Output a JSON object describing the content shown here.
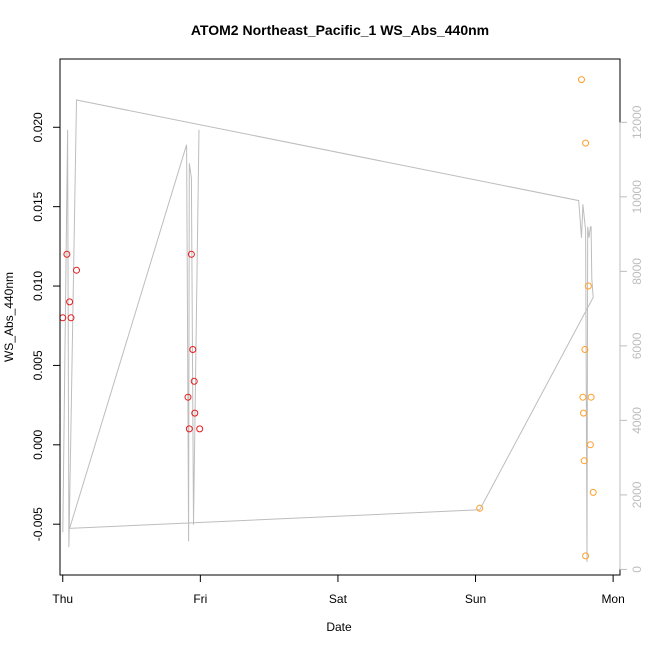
{
  "chart_data": {
    "type": "scatter",
    "title": "ATOM2 Northeast_Pacific_1 WS_Abs_440nm",
    "xlabel": "Date",
    "ylabel": "WS_Abs_440nm",
    "xlim_days": [
      -0.02,
      4.05
    ],
    "ylim": [
      -0.0082,
      0.0243
    ],
    "y2lim": [
      -150,
      13700
    ],
    "x_ticks": [
      {
        "label": "Thu",
        "day": 0
      },
      {
        "label": "Fri",
        "day": 1
      },
      {
        "label": "Sat",
        "day": 2
      },
      {
        "label": "Sun",
        "day": 3
      },
      {
        "label": "Mon",
        "day": 4
      }
    ],
    "y_ticks": [
      {
        "label": "-0.005",
        "value": -0.005
      },
      {
        "label": "0.000",
        "value": 0.0
      },
      {
        "label": "0.005",
        "value": 0.005
      },
      {
        "label": "0.010",
        "value": 0.01
      },
      {
        "label": "0.015",
        "value": 0.015
      },
      {
        "label": "0.020",
        "value": 0.02
      }
    ],
    "y2_ticks": [
      {
        "label": "0",
        "value": 0
      },
      {
        "label": "2000",
        "value": 2000
      },
      {
        "label": "4000",
        "value": 4000
      },
      {
        "label": "6000",
        "value": 6000
      },
      {
        "label": "8000",
        "value": 8000
      },
      {
        "label": "10000",
        "value": 10000
      },
      {
        "label": "12000",
        "value": 12000
      }
    ],
    "colors": {
      "thu_fri_points": "#e41a1c",
      "sun_mon_points": "#ff9f2a",
      "line": "#bdbdbd",
      "axis": "#000000",
      "right_axis": "#bdbdbd"
    },
    "series": [
      {
        "color_key": "thu_fri_points",
        "points": [
          {
            "x": 0.0,
            "y": 0.008
          },
          {
            "x": 0.03,
            "y": 0.012
          },
          {
            "x": 0.05,
            "y": 0.009
          },
          {
            "x": 0.06,
            "y": 0.008
          },
          {
            "x": 0.1,
            "y": 0.011
          },
          {
            "x": 0.91,
            "y": 0.003
          },
          {
            "x": 0.92,
            "y": 0.001
          },
          {
            "x": 0.935,
            "y": 0.012
          },
          {
            "x": 0.945,
            "y": 0.006
          },
          {
            "x": 0.955,
            "y": 0.004
          },
          {
            "x": 0.96,
            "y": 0.002
          },
          {
            "x": 0.995,
            "y": 0.001
          }
        ]
      },
      {
        "color_key": "sun_mon_points",
        "points": [
          {
            "x": 3.03,
            "y": -0.004
          },
          {
            "x": 3.77,
            "y": 0.023
          },
          {
            "x": 3.78,
            "y": 0.003
          },
          {
            "x": 3.785,
            "y": 0.002
          },
          {
            "x": 3.79,
            "y": -0.001
          },
          {
            "x": 3.795,
            "y": 0.006
          },
          {
            "x": 3.8,
            "y": 0.019
          },
          {
            "x": 3.8,
            "y": -0.007
          },
          {
            "x": 3.82,
            "y": 0.01
          },
          {
            "x": 3.835,
            "y": 0.0
          },
          {
            "x": 3.84,
            "y": 0.003
          },
          {
            "x": 3.855,
            "y": -0.003
          }
        ]
      }
    ],
    "secondary_line": [
      {
        "x": 0.0,
        "y": 1000
      },
      {
        "x": 0.035,
        "y": 11800
      },
      {
        "x": 0.045,
        "y": 600
      },
      {
        "x": 0.1,
        "y": 12600
      },
      {
        "x": 3.75,
        "y": 9900
      },
      {
        "x": 3.77,
        "y": 8900
      },
      {
        "x": 3.78,
        "y": 9800
      },
      {
        "x": 3.8,
        "y": 9100
      },
      {
        "x": 3.81,
        "y": 200
      },
      {
        "x": 3.815,
        "y": 9200
      },
      {
        "x": 3.825,
        "y": 8900
      },
      {
        "x": 3.835,
        "y": 9200
      },
      {
        "x": 3.84,
        "y": 9200
      },
      {
        "x": 3.845,
        "y": 7800
      },
      {
        "x": 3.855,
        "y": 7300
      },
      {
        "x": 3.03,
        "y": 1600
      },
      {
        "x": 0.05,
        "y": 1100
      },
      {
        "x": 0.9,
        "y": 11400
      },
      {
        "x": 0.915,
        "y": 750
      },
      {
        "x": 0.92,
        "y": 10900
      },
      {
        "x": 0.935,
        "y": 10500
      },
      {
        "x": 0.95,
        "y": 1200
      },
      {
        "x": 0.99,
        "y": 11800
      }
    ]
  }
}
